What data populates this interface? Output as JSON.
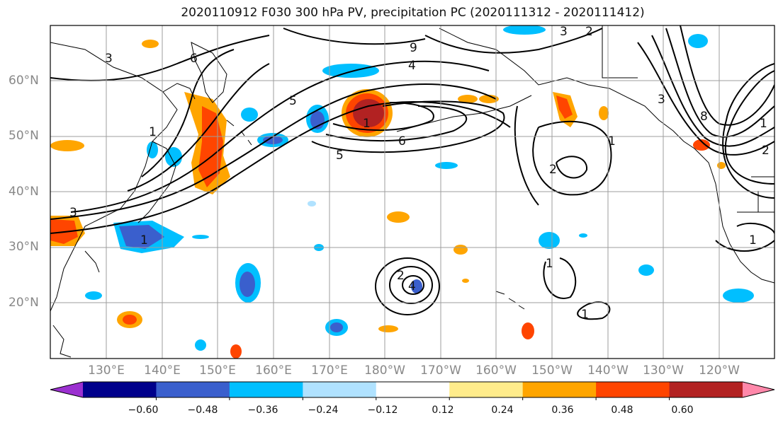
{
  "title": "2020110912 F030 300 hPa PV, precipitation PC (2020111312 - 2020111412)",
  "lat_labels": [
    "60°N",
    "50°N",
    "40°N",
    "30°N",
    "20°N"
  ],
  "lon_labels": [
    "130°E",
    "140°E",
    "150°E",
    "160°E",
    "170°E",
    "180°W",
    "170°W",
    "160°W",
    "150°W",
    "140°W",
    "130°W",
    "120°W"
  ],
  "colorbar": {
    "ticks": [
      "−0.60",
      "−0.48",
      "−0.36",
      "−0.24",
      "−0.12",
      "0.12",
      "0.24",
      "0.36",
      "0.48",
      "0.60"
    ],
    "colors": [
      "#9b30d0",
      "#00008b",
      "#3a5fcd",
      "#00bfff",
      "#b0e2ff",
      "#ffffff",
      "#ffec8b",
      "#ffa500",
      "#ff4500",
      "#b22222",
      "#ff88aa"
    ]
  },
  "contour_labels": [
    "3",
    "1",
    "1",
    "6",
    "5",
    "6",
    "1",
    "3",
    "2",
    "1",
    "1",
    "2",
    "1",
    "4",
    "8",
    "3",
    "1",
    "2",
    "9",
    "4",
    "3",
    "5",
    "2",
    "1"
  ]
}
